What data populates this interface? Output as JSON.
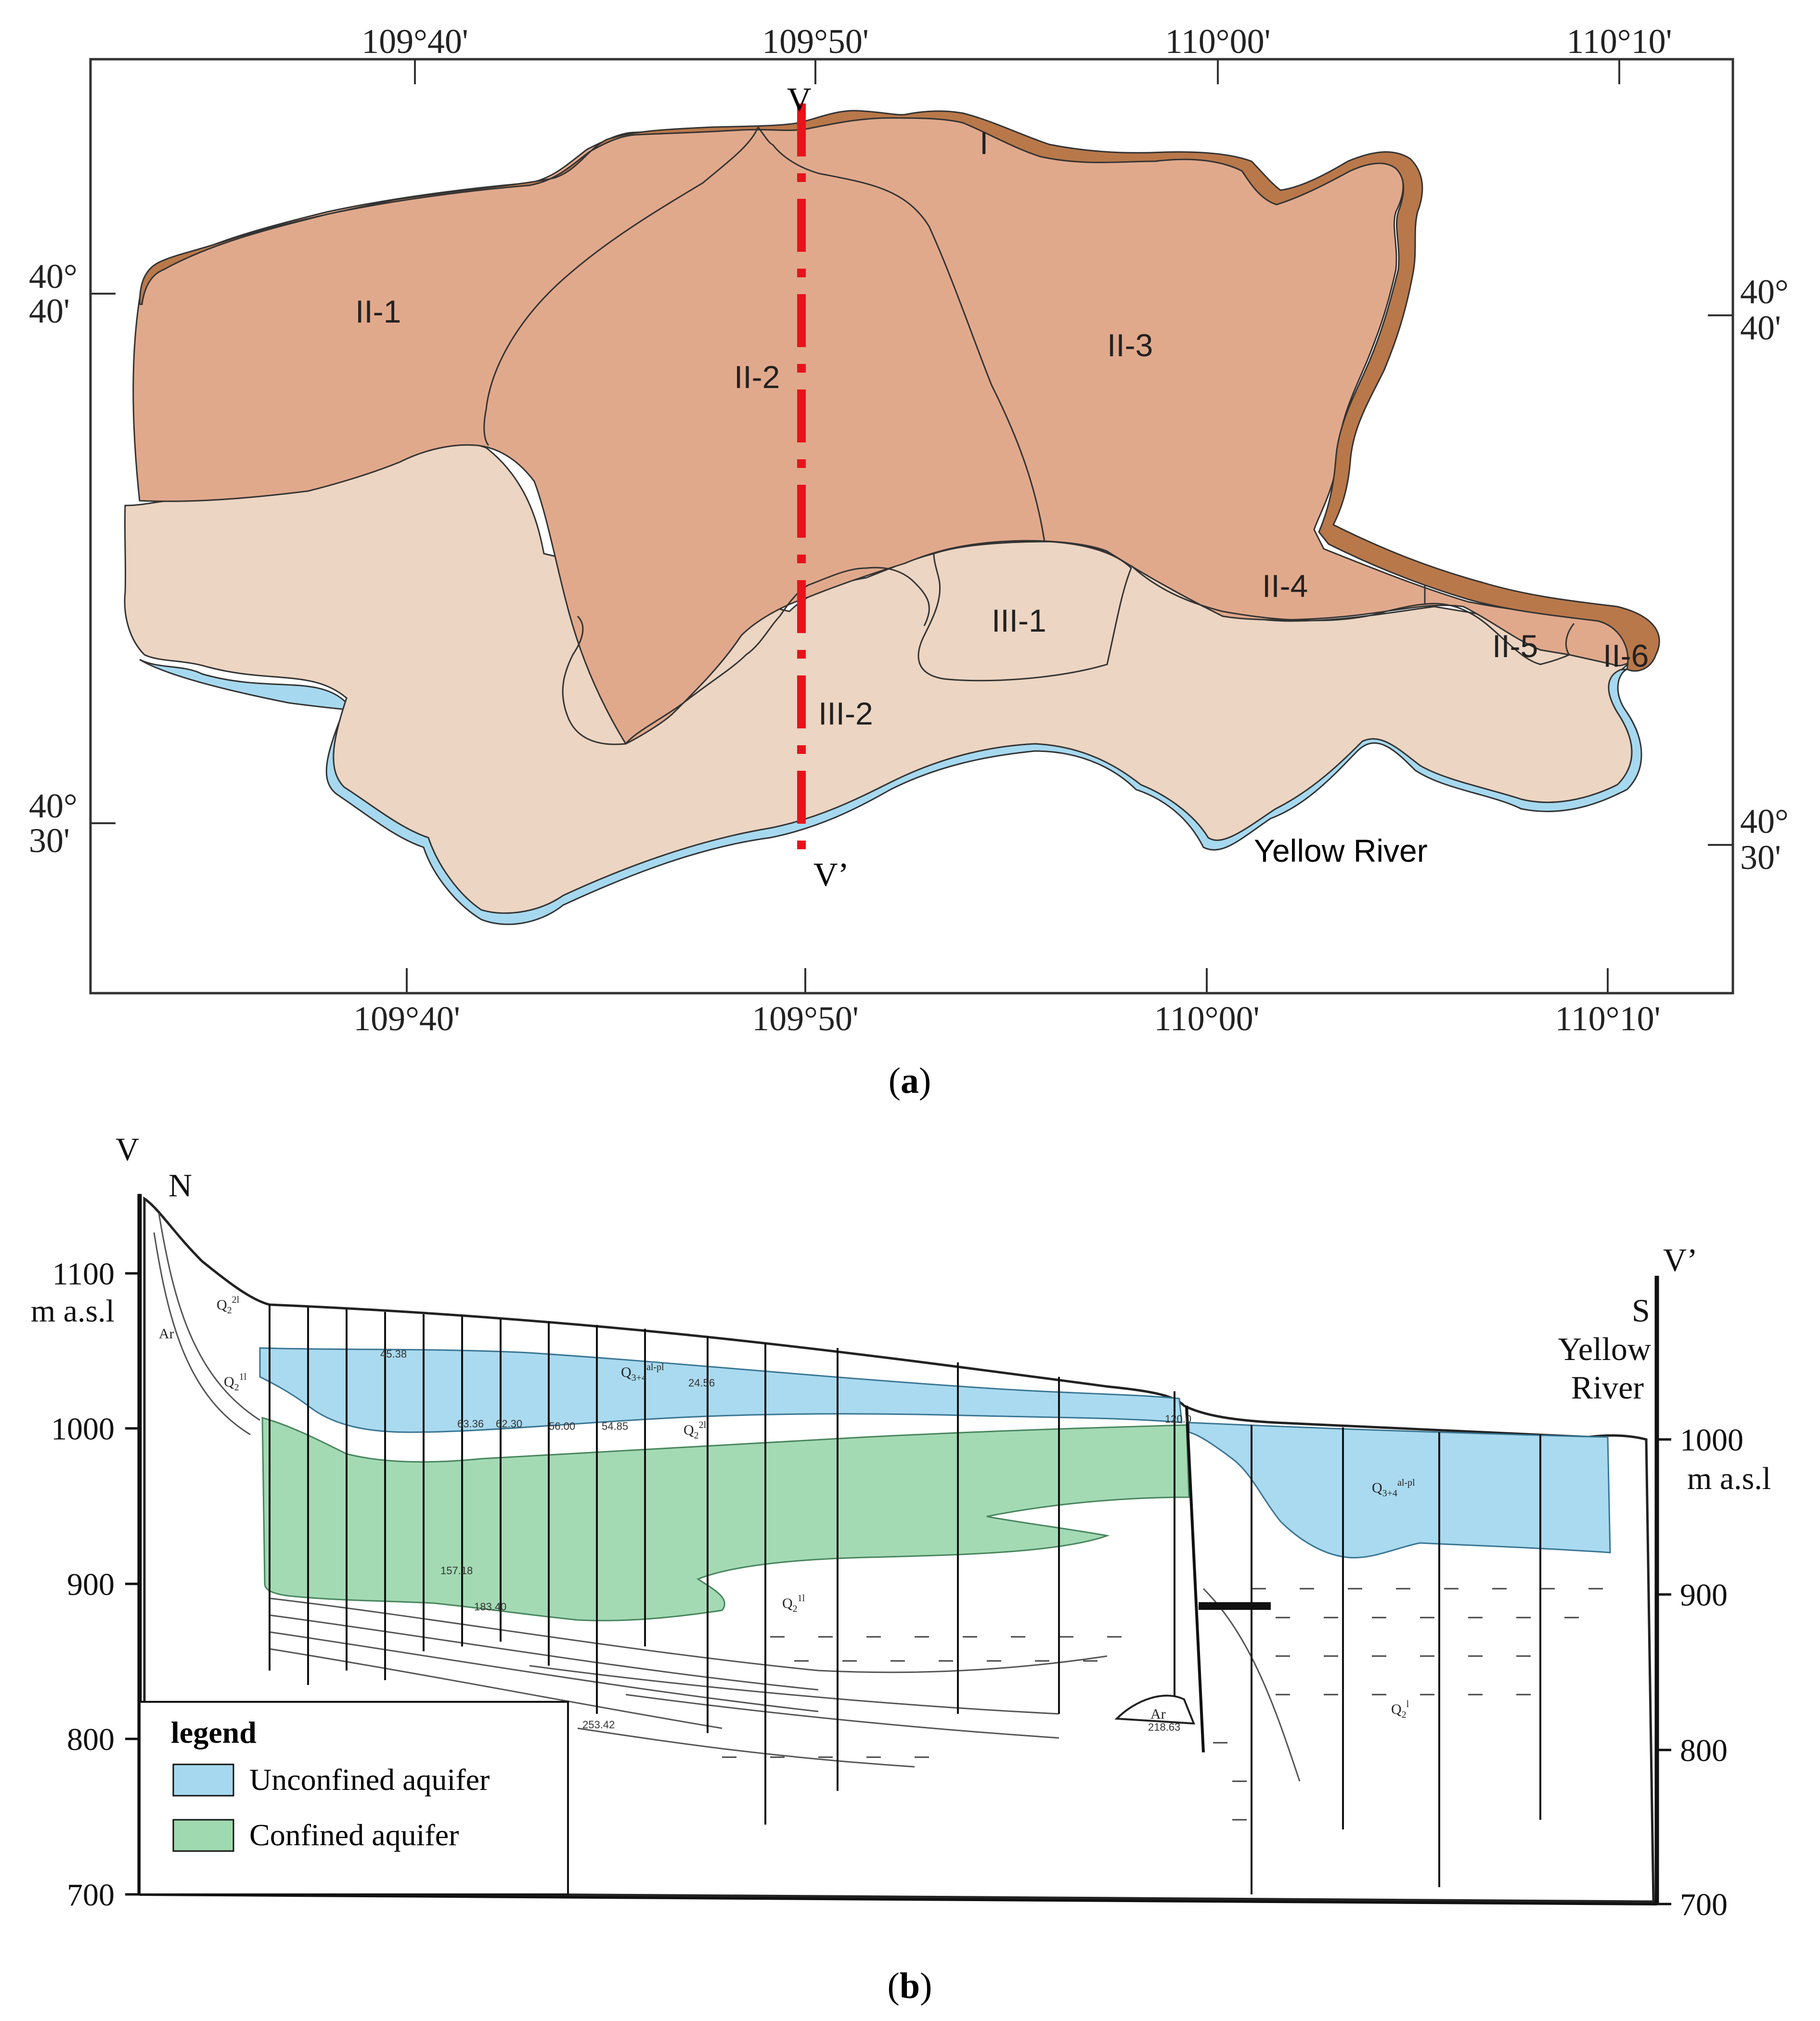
{
  "panel_a": {
    "caption_letter": "a",
    "top_lon": [
      "109°40'",
      "109°50'",
      "110°00'",
      "110°10'"
    ],
    "bottom_lon": [
      "109°40'",
      "109°50'",
      "110°00'",
      "110°10'"
    ],
    "left_lat": [
      {
        "deg": "40°",
        "min": "40'"
      },
      {
        "deg": "40°",
        "min": "30'"
      }
    ],
    "right_lat": [
      {
        "deg": "40°",
        "min": "40'"
      },
      {
        "deg": "40°",
        "min": "30'"
      }
    ],
    "zones": [
      "I",
      "II-1",
      "II-2",
      "II-3",
      "II-4",
      "II-5",
      "II-6",
      "III-1",
      "III-2"
    ],
    "section_start": "V",
    "section_end": "V’",
    "river_label": "Yellow River",
    "colors": {
      "zone_I": "#b9784a",
      "zone_II": "#e1a98c",
      "zone_III": "#ecd5c2",
      "river": "#a6d9ef",
      "section_line": "#e8121b"
    }
  },
  "panel_b": {
    "caption_letter": "b",
    "left_end": "V",
    "north": "N",
    "right_end": "V’",
    "south": "S",
    "river_line1": "Yellow",
    "river_line2": "River",
    "left_axis": [
      "1100",
      "1000",
      "900",
      "800",
      "700"
    ],
    "right_axis": [
      "1000",
      "900",
      "800",
      "700"
    ],
    "unit": "m a.s.l",
    "legend": {
      "title": "legend",
      "items": [
        {
          "label": "Unconfined aquifer",
          "color": "#a6d9ef"
        },
        {
          "label": "Confined aquifer",
          "color": "#9fd9b0"
        }
      ]
    },
    "strata": {
      "q2_1l": "Q",
      "q2_2l": "Q",
      "q34_alpl": "Q",
      "ar": "Ar"
    },
    "well_values": [
      "45.38",
      "24.56",
      "63.36",
      "62.30",
      "56.00",
      "54.85",
      "157.18",
      "183.40",
      "253.42",
      "218.63",
      "120.0"
    ]
  }
}
